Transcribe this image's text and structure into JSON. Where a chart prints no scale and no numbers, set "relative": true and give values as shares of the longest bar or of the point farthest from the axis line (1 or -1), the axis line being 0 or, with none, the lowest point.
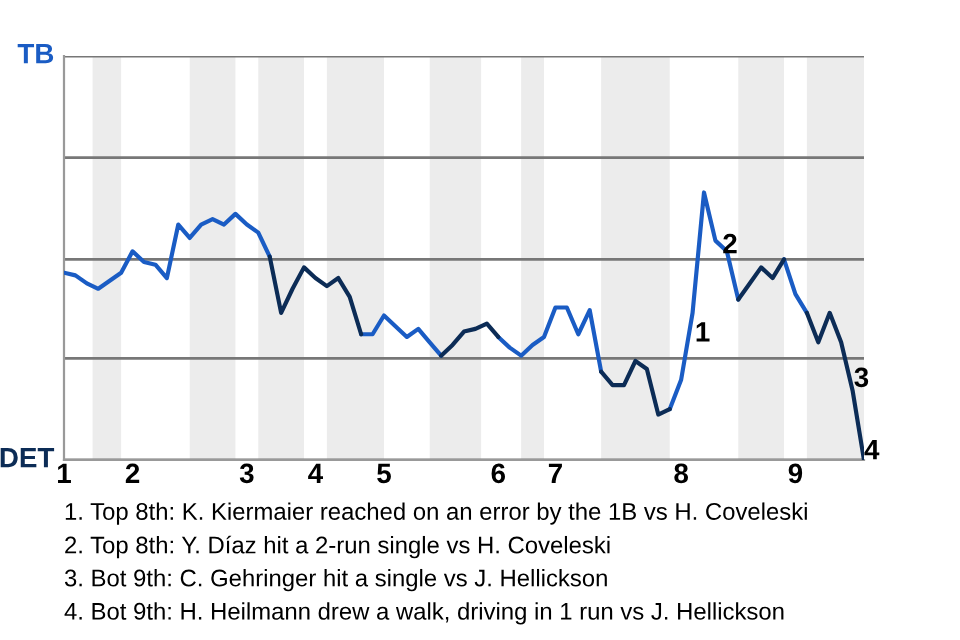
{
  "chart_data": {
    "type": "line",
    "relative": true,
    "categories": [
      "1",
      null,
      null,
      null,
      null,
      null,
      "2",
      null,
      null,
      null,
      null,
      null,
      null,
      null,
      null,
      null,
      "3",
      null,
      null,
      null,
      null,
      null,
      "4",
      null,
      null,
      null,
      null,
      null,
      "5",
      null,
      null,
      null,
      null,
      null,
      null,
      null,
      null,
      null,
      "6",
      null,
      null,
      null,
      null,
      "7",
      null,
      null,
      null,
      null,
      null,
      null,
      null,
      null,
      null,
      null,
      "8",
      null,
      null,
      null,
      null,
      null,
      null,
      null,
      null,
      null,
      "9",
      null,
      null,
      null,
      null,
      null,
      null
    ],
    "ref_lines": [
      {
        "axis": "y",
        "value": 0,
        "label": "DET",
        "color": "#777777"
      },
      {
        "axis": "y",
        "value": 0.38,
        "label": null,
        "color": "#777777"
      },
      {
        "axis": "y",
        "value": 0.75,
        "label": null,
        "color": "#777777"
      },
      {
        "axis": "y",
        "value": 1.13,
        "label": null,
        "color": "#777777"
      },
      {
        "axis": "y",
        "value": 1.51,
        "label": "TB",
        "color": "#777777"
      }
    ],
    "series": [
      {
        "color": "#1a5cc4",
        "values": [
          0.7,
          0.69,
          0.66,
          0.64,
          0.67,
          0.7,
          0.78,
          0.74,
          0.73,
          0.68,
          0.88,
          0.83,
          0.88,
          0.9,
          0.88,
          0.92,
          0.88,
          0.85,
          0.76,
          null,
          null,
          null,
          null,
          null,
          null,
          null,
          0.47,
          0.47,
          0.54,
          0.5,
          0.46,
          0.49,
          0.44,
          0.39,
          null,
          null,
          null,
          null,
          0.46,
          0.42,
          0.39,
          0.43,
          0.46,
          0.57,
          0.57,
          0.47,
          0.56,
          0.33,
          null,
          null,
          null,
          null,
          null,
          0.19,
          0.3,
          0.55,
          1,
          0.82,
          0.78,
          0.6,
          null,
          null,
          null,
          0.75,
          0.62,
          0.55,
          null,
          null,
          null,
          null,
          null
        ]
      },
      {
        "color": "#0c2c56",
        "values": [
          null,
          null,
          null,
          null,
          null,
          null,
          null,
          null,
          null,
          null,
          null,
          null,
          null,
          null,
          null,
          null,
          null,
          null,
          0.76,
          0.55,
          0.64,
          0.72,
          0.68,
          0.65,
          0.68,
          0.61,
          0.47,
          null,
          null,
          null,
          null,
          null,
          null,
          0.39,
          0.43,
          0.48,
          0.49,
          0.51,
          0.46,
          null,
          null,
          null,
          null,
          null,
          null,
          null,
          null,
          0.33,
          0.28,
          0.28,
          0.37,
          0.34,
          0.17,
          0.19,
          null,
          null,
          null,
          null,
          null,
          0.6,
          0.66,
          0.72,
          0.68,
          0.75,
          null,
          0.55,
          0.44,
          0.55,
          0.44,
          0.26,
          0
        ]
      }
    ],
    "legend": false,
    "marker": "none",
    "line_style": "solid",
    "annotations": [
      "1",
      "2",
      "3",
      "4",
      "1. Top 8th: K. Kiermaier reached on an error by the 1B vs H. Coveleski",
      "2. Top 8th: Y. Díaz hit a 2-run single vs H. Coveleski",
      "3. Bot 9th: C. Gehringer hit a single vs J. Hellickson",
      "4. Bot 9th: H. Heilmann drew a walk, driving in 1 run vs J. Hellickson"
    ]
  }
}
